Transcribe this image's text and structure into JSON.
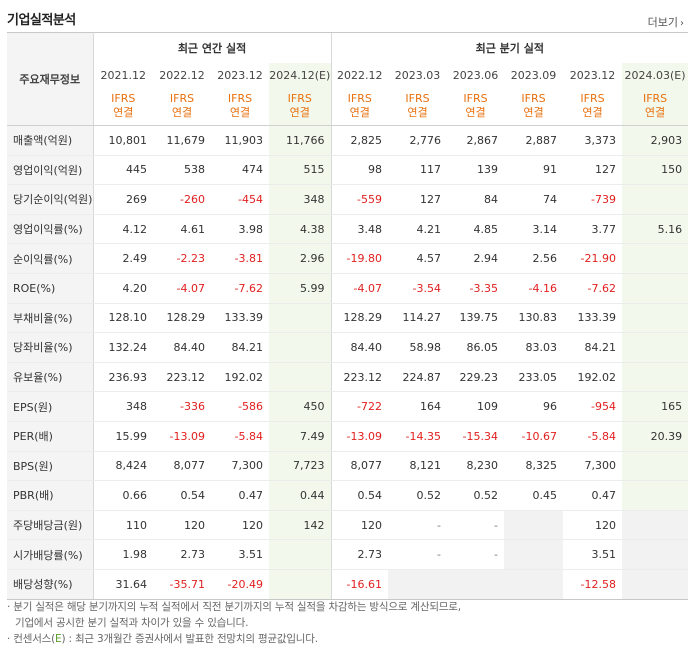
{
  "header": {
    "title": "기업실적분석",
    "more_label": "더보기",
    "more_arrow": "›"
  },
  "columns": {
    "row_label_header": "주요재무정보",
    "annual_group": "최근 연간 실적",
    "quarter_group": "최근 분기 실적",
    "annual_periods": [
      "2021.12",
      "2022.12",
      "2023.12",
      "2024.12(E)"
    ],
    "quarter_periods": [
      "2022.12",
      "2023.03",
      "2023.06",
      "2023.09",
      "2023.12",
      "2024.03(E)"
    ],
    "basis_top": "IFRS",
    "basis_bottom": "연결"
  },
  "rows": [
    {
      "label": "매출액(억원)",
      "values": [
        "10,801",
        "11,679",
        "11,903",
        "11,766",
        "2,825",
        "2,776",
        "2,867",
        "2,887",
        "3,373",
        "2,903"
      ]
    },
    {
      "label": "영업이익(억원)",
      "values": [
        "445",
        "538",
        "474",
        "515",
        "98",
        "117",
        "139",
        "91",
        "127",
        "150"
      ]
    },
    {
      "label": "당기순이익(억원)",
      "values": [
        "269",
        "-260",
        "-454",
        "348",
        "-559",
        "127",
        "84",
        "74",
        "-739",
        ""
      ]
    },
    {
      "label": "영업이익률(%)",
      "values": [
        "4.12",
        "4.61",
        "3.98",
        "4.38",
        "3.48",
        "4.21",
        "4.85",
        "3.14",
        "3.77",
        "5.16"
      ]
    },
    {
      "label": "순이익률(%)",
      "values": [
        "2.49",
        "-2.23",
        "-3.81",
        "2.96",
        "-19.80",
        "4.57",
        "2.94",
        "2.56",
        "-21.90",
        ""
      ]
    },
    {
      "label": "ROE(%)",
      "values": [
        "4.20",
        "-4.07",
        "-7.62",
        "5.99",
        "-4.07",
        "-3.54",
        "-3.35",
        "-4.16",
        "-7.62",
        ""
      ]
    },
    {
      "label": "부채비율(%)",
      "values": [
        "128.10",
        "128.29",
        "133.39",
        "",
        "128.29",
        "114.27",
        "139.75",
        "130.83",
        "133.39",
        ""
      ]
    },
    {
      "label": "당좌비율(%)",
      "values": [
        "132.24",
        "84.40",
        "84.21",
        "",
        "84.40",
        "58.98",
        "86.05",
        "83.03",
        "84.21",
        ""
      ]
    },
    {
      "label": "유보율(%)",
      "values": [
        "236.93",
        "223.12",
        "192.02",
        "",
        "223.12",
        "224.87",
        "229.23",
        "233.05",
        "192.02",
        ""
      ]
    },
    {
      "label": "EPS(원)",
      "values": [
        "348",
        "-336",
        "-586",
        "450",
        "-722",
        "164",
        "109",
        "96",
        "-954",
        "165"
      ]
    },
    {
      "label": "PER(배)",
      "values": [
        "15.99",
        "-13.09",
        "-5.84",
        "7.49",
        "-13.09",
        "-14.35",
        "-15.34",
        "-10.67",
        "-5.84",
        "20.39"
      ]
    },
    {
      "label": "BPS(원)",
      "values": [
        "8,424",
        "8,077",
        "7,300",
        "7,723",
        "8,077",
        "8,121",
        "8,230",
        "8,325",
        "7,300",
        ""
      ]
    },
    {
      "label": "PBR(배)",
      "values": [
        "0.66",
        "0.54",
        "0.47",
        "0.44",
        "0.54",
        "0.52",
        "0.52",
        "0.45",
        "0.47",
        ""
      ]
    },
    {
      "label": "주당배당금(원)",
      "values": [
        "110",
        "120",
        "120",
        "142",
        "120",
        "-",
        "-",
        "",
        "120",
        ""
      ]
    },
    {
      "label": "시가배당률(%)",
      "values": [
        "1.98",
        "2.73",
        "3.51",
        "",
        "2.73",
        "-",
        "-",
        "",
        "3.51",
        ""
      ]
    },
    {
      "label": "배당성향(%)",
      "values": [
        "31.64",
        "-35.71",
        "-20.49",
        "",
        "-16.61",
        "",
        "",
        "",
        "-12.58",
        ""
      ]
    }
  ],
  "notes": {
    "line1": "· 분기 실적은 해당 분기까지의 누적 실적에서 직전 분기까지의 누적 실적을 차감하는 방식으로 계산되므로,",
    "line2": "기업에서 공시한 분기 실적과 차이가 있을 수 있습니다.",
    "line3_prefix": "· 컨센서스(",
    "line3_e": "E",
    "line3_suffix": ") : 최근 3개월간 증권사에서 발표한 전망치의 평균값입니다."
  }
}
